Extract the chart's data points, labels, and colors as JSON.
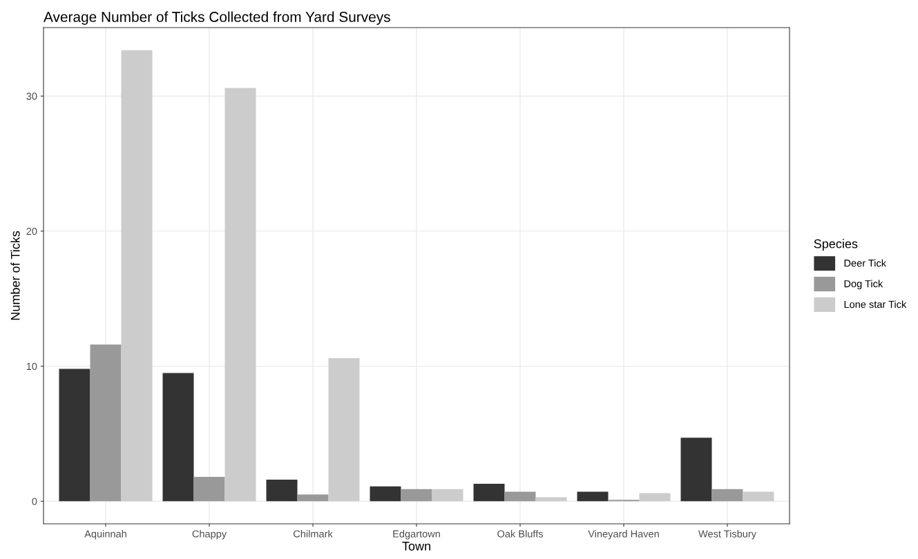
{
  "chart_data": {
    "type": "bar",
    "title": "Average Number of Ticks Collected from Yard Surveys",
    "xlabel": "Town",
    "ylabel": "Number of Ticks",
    "legend_title": "Species",
    "categories": [
      "Aquinnah",
      "Chappy",
      "Chilmark",
      "Edgartown",
      "Oak Bluffs",
      "Vineyard Haven",
      "West Tisbury"
    ],
    "series": [
      {
        "name": "Deer Tick",
        "color": "#333333",
        "values": [
          9.8,
          9.5,
          1.6,
          1.1,
          1.3,
          0.7,
          4.7
        ]
      },
      {
        "name": "Dog Tick",
        "color": "#999999",
        "values": [
          11.6,
          1.8,
          0.5,
          0.9,
          0.7,
          0.1,
          0.9
        ]
      },
      {
        "name": "Lone star Tick",
        "color": "#cccccc",
        "values": [
          33.4,
          30.6,
          10.6,
          0.9,
          0.3,
          0.6,
          0.7
        ]
      }
    ],
    "ylim": [
      -1.67,
      35.07
    ],
    "yticks": [
      0,
      10,
      20,
      30
    ],
    "grid": true,
    "legend": "right"
  }
}
